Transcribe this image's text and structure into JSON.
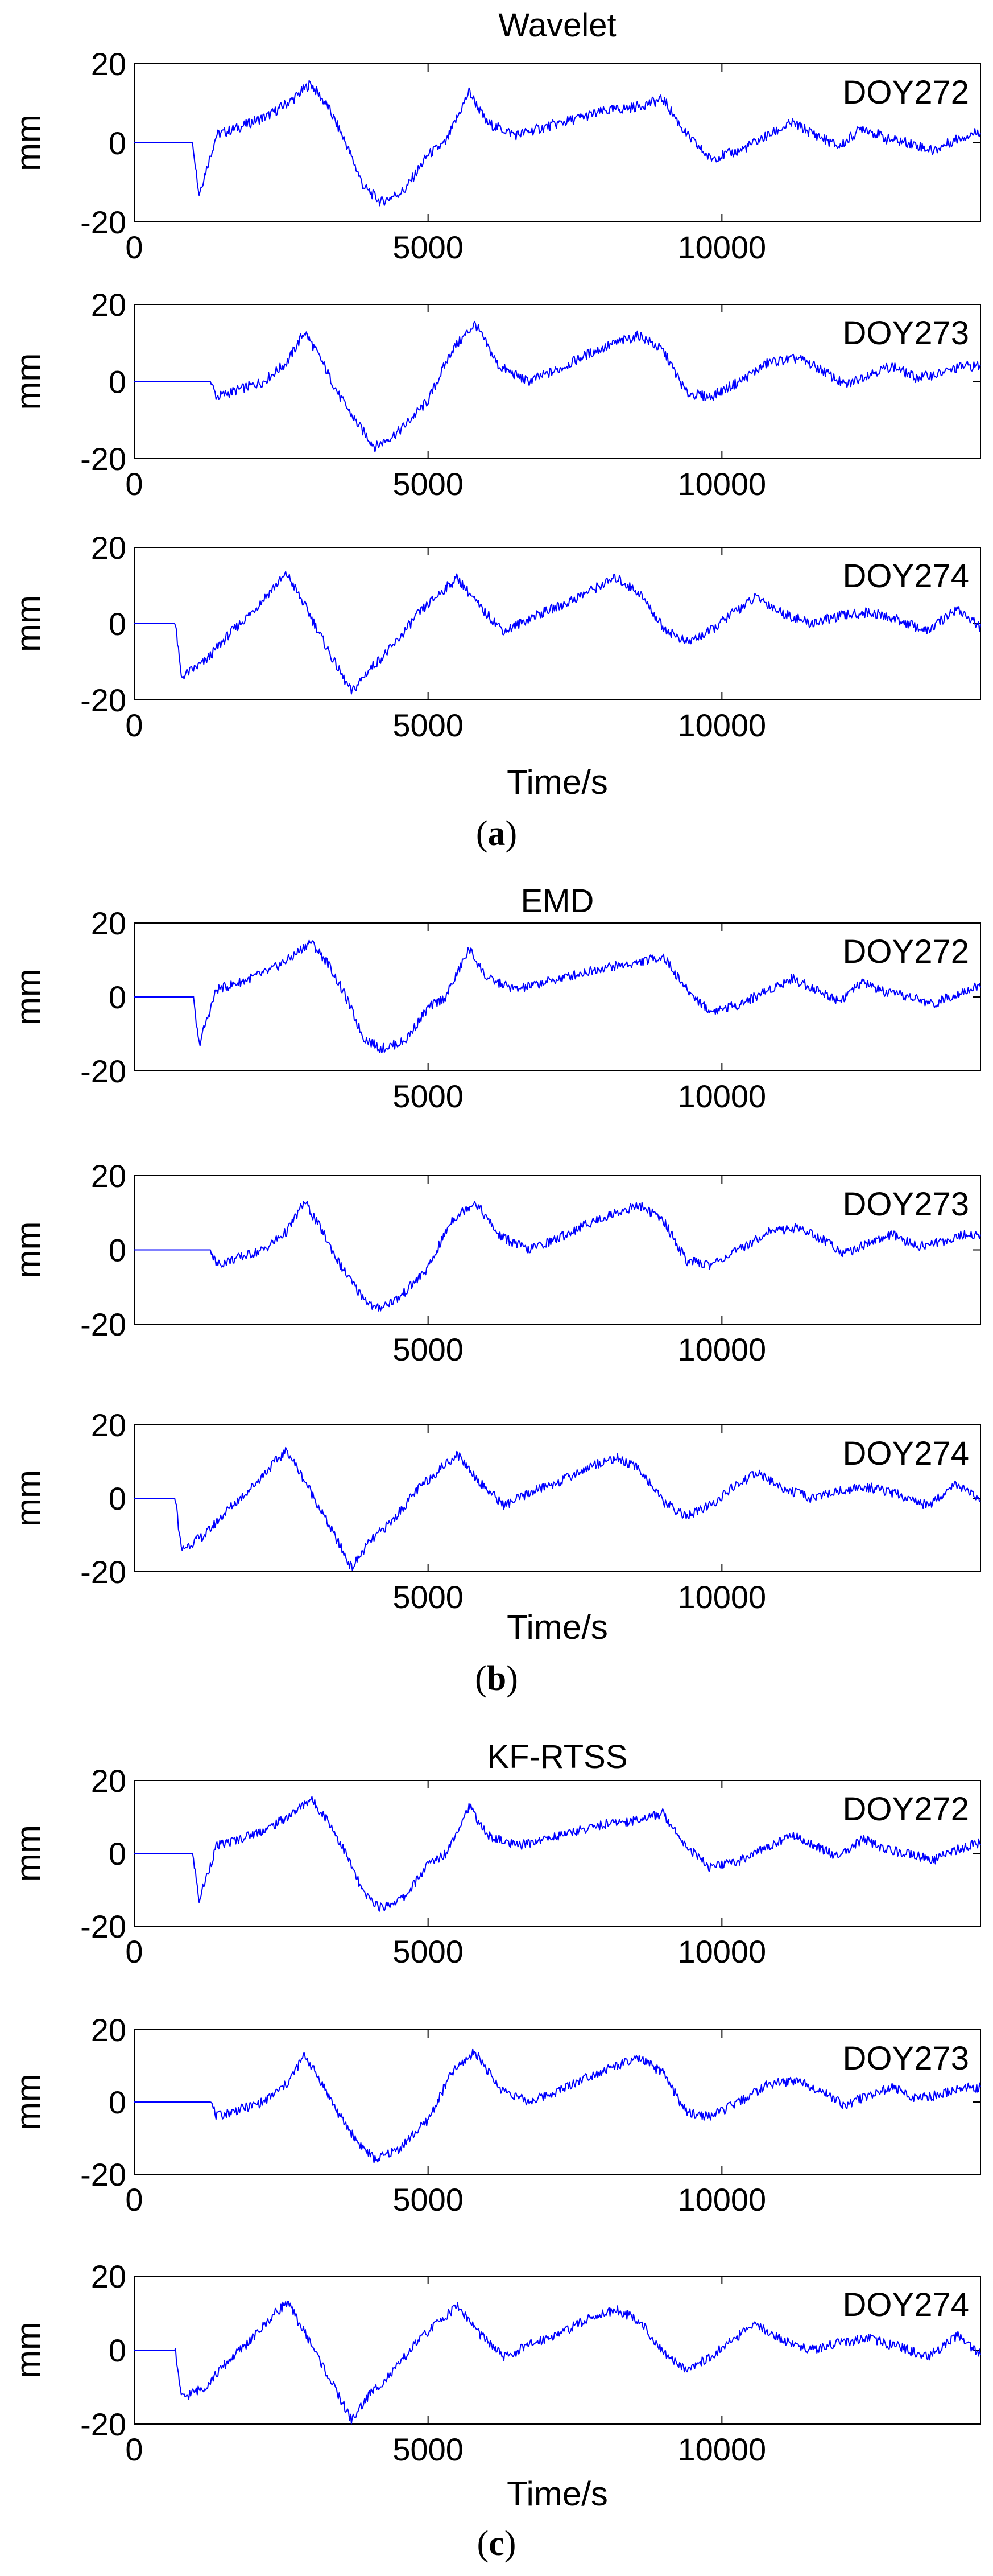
{
  "chart_data": [
    {
      "type": "line",
      "panel_label": "a",
      "title": "Wavelet",
      "xlabel": "Time/s",
      "ylabel": "mm",
      "xlim": [
        0,
        14400
      ],
      "ylim": [
        -20,
        20
      ],
      "xticks": [
        0,
        5000,
        10000
      ],
      "yticks": [
        20,
        0,
        -20
      ],
      "color": "#0000ff",
      "grid": false,
      "subplots": [
        {
          "name": "DOY272",
          "x": [
            0,
            1000,
            1100,
            1200,
            1400,
            1800,
            2300,
            2700,
            3000,
            3300,
            3600,
            3900,
            4200,
            4600,
            5000,
            5300,
            5700,
            6000,
            6500,
            7000,
            7500,
            8000,
            8500,
            9000,
            9400,
            9800,
            10300,
            10800,
            11200,
            11600,
            12000,
            12400,
            12800,
            13200,
            13600,
            14000,
            14400
          ],
          "y": [
            0,
            0,
            -13,
            -8,
            2,
            4,
            7,
            11,
            15,
            9,
            0,
            -11,
            -15,
            -12,
            -3,
            0,
            13,
            5,
            2,
            4,
            6,
            8,
            9,
            11,
            2,
            -4,
            -2,
            2,
            5,
            2,
            -1,
            4,
            1,
            0,
            -2,
            1,
            3
          ]
        },
        {
          "name": "DOY273",
          "x": [
            0,
            1300,
            1400,
            1800,
            2200,
            2600,
            2900,
            3200,
            3500,
            3800,
            4100,
            4500,
            5000,
            5400,
            5800,
            6200,
            6700,
            7200,
            7700,
            8200,
            8600,
            9000,
            9400,
            9800,
            10300,
            10800,
            11300,
            11700,
            12100,
            12500,
            12900,
            13300,
            13700,
            14100,
            14400
          ],
          "y": [
            0,
            0,
            -4,
            -2,
            0,
            5,
            13,
            5,
            -4,
            -11,
            -17,
            -13,
            -5,
            8,
            15,
            4,
            0,
            3,
            7,
            10,
            12,
            8,
            -3,
            -4,
            0,
            5,
            6,
            3,
            -1,
            2,
            4,
            1,
            2,
            4,
            4
          ]
        },
        {
          "name": "DOY274",
          "x": [
            0,
            700,
            800,
            1200,
            1600,
            2000,
            2400,
            2600,
            3000,
            3400,
            3700,
            4000,
            4400,
            4800,
            5200,
            5500,
            5900,
            6300,
            6800,
            7300,
            7800,
            8200,
            8600,
            9000,
            9400,
            9800,
            10200,
            10600,
            11000,
            11500,
            12000,
            12500,
            13000,
            13500,
            14000,
            14400
          ],
          "y": [
            0,
            0,
            -14,
            -10,
            -3,
            3,
            10,
            13,
            2,
            -10,
            -18,
            -12,
            -6,
            2,
            8,
            12,
            4,
            -2,
            2,
            5,
            9,
            12,
            8,
            -1,
            -5,
            -2,
            3,
            7,
            3,
            0,
            2,
            3,
            1,
            -2,
            4,
            -1
          ]
        }
      ]
    },
    {
      "type": "line",
      "panel_label": "b",
      "title": "EMD",
      "xlabel": "Time/s",
      "ylabel": "mm",
      "xlim": [
        0,
        14400
      ],
      "ylim": [
        -20,
        20
      ],
      "xticks": [
        5000,
        10000
      ],
      "yticks": [
        20,
        0,
        -20
      ],
      "color": "#0000ff",
      "grid": false,
      "subplots": [
        {
          "name": "DOY272",
          "x": [
            0,
            1000,
            1100,
            1200,
            1400,
            1800,
            2300,
            2700,
            3000,
            3300,
            3600,
            3900,
            4200,
            4600,
            5000,
            5300,
            5700,
            6000,
            6500,
            7000,
            7500,
            8000,
            8500,
            9000,
            9400,
            9800,
            10300,
            10800,
            11200,
            11600,
            12000,
            12400,
            12800,
            13200,
            13600,
            14000,
            14400
          ],
          "y": [
            0,
            0,
            -13,
            -8,
            2,
            4,
            7,
            11,
            15,
            9,
            0,
            -11,
            -14,
            -12,
            -3,
            0,
            13,
            5,
            2,
            4,
            6,
            8,
            9,
            11,
            2,
            -4,
            -2,
            2,
            5,
            2,
            -1,
            4,
            1,
            0,
            -2,
            1,
            3
          ]
        },
        {
          "name": "DOY273",
          "x": [
            0,
            1300,
            1400,
            1800,
            2200,
            2600,
            2900,
            3200,
            3500,
            3800,
            4100,
            4500,
            5000,
            5400,
            5800,
            6200,
            6700,
            7200,
            7700,
            8200,
            8600,
            9000,
            9400,
            9800,
            10300,
            10800,
            11300,
            11700,
            12100,
            12500,
            12900,
            13300,
            13700,
            14100,
            14400
          ],
          "y": [
            0,
            0,
            -4,
            -2,
            0,
            5,
            13,
            5,
            -4,
            -11,
            -16,
            -13,
            -5,
            8,
            13,
            4,
            0,
            3,
            7,
            10,
            12,
            8,
            -3,
            -4,
            0,
            5,
            6,
            3,
            -1,
            2,
            4,
            1,
            2,
            4,
            4
          ]
        },
        {
          "name": "DOY274",
          "x": [
            0,
            700,
            800,
            1200,
            1600,
            2000,
            2400,
            2600,
            3000,
            3400,
            3700,
            4000,
            4400,
            4800,
            5200,
            5500,
            5900,
            6300,
            6800,
            7300,
            7800,
            8200,
            8600,
            9000,
            9400,
            9800,
            10200,
            10600,
            11000,
            11500,
            12000,
            12500,
            13000,
            13500,
            14000,
            14400
          ],
          "y": [
            0,
            0,
            -14,
            -10,
            -3,
            3,
            10,
            13,
            2,
            -10,
            -19,
            -12,
            -6,
            2,
            8,
            12,
            4,
            -2,
            2,
            5,
            9,
            11,
            8,
            -1,
            -5,
            -2,
            3,
            7,
            3,
            0,
            2,
            3,
            1,
            -2,
            4,
            -1
          ]
        }
      ]
    },
    {
      "type": "line",
      "panel_label": "c",
      "title": "KF-RTSS",
      "xlabel": "Time/s",
      "ylabel": "mm",
      "xlim": [
        0,
        14400
      ],
      "ylim": [
        -20,
        20
      ],
      "xticks": [
        0,
        5000,
        10000
      ],
      "yticks": [
        20,
        0,
        -20
      ],
      "color": "#0000ff",
      "grid": false,
      "subplots": [
        {
          "name": "DOY272",
          "x": [
            0,
            1000,
            1100,
            1200,
            1400,
            1800,
            2300,
            2700,
            3000,
            3300,
            3600,
            3900,
            4200,
            4600,
            5000,
            5300,
            5700,
            6000,
            6500,
            7000,
            7500,
            8000,
            8500,
            9000,
            9400,
            9800,
            10300,
            10800,
            11200,
            11600,
            12000,
            12400,
            12800,
            13200,
            13600,
            14000,
            14400
          ],
          "y": [
            0,
            0,
            -13,
            -8,
            2,
            4,
            7,
            11,
            15,
            9,
            0,
            -11,
            -15,
            -12,
            -3,
            0,
            13,
            5,
            2,
            4,
            6,
            8,
            9,
            11,
            2,
            -4,
            -2,
            2,
            5,
            2,
            -1,
            4,
            1,
            0,
            -2,
            1,
            3
          ]
        },
        {
          "name": "DOY273",
          "x": [
            0,
            1300,
            1400,
            1800,
            2200,
            2600,
            2900,
            3200,
            3500,
            3800,
            4100,
            4500,
            5000,
            5400,
            5800,
            6200,
            6700,
            7200,
            7700,
            8200,
            8600,
            9000,
            9400,
            9800,
            10300,
            10800,
            11300,
            11700,
            12100,
            12500,
            12900,
            13300,
            13700,
            14100,
            14400
          ],
          "y": [
            0,
            0,
            -4,
            -2,
            0,
            5,
            13,
            5,
            -4,
            -11,
            -16,
            -13,
            -5,
            8,
            14,
            4,
            0,
            3,
            7,
            10,
            12,
            8,
            -3,
            -4,
            0,
            5,
            6,
            3,
            -1,
            2,
            4,
            1,
            2,
            4,
            4
          ]
        },
        {
          "name": "DOY274",
          "x": [
            0,
            700,
            800,
            1200,
            1600,
            2000,
            2400,
            2600,
            3000,
            3400,
            3700,
            4000,
            4400,
            4800,
            5200,
            5500,
            5900,
            6300,
            6800,
            7300,
            7800,
            8200,
            8600,
            9000,
            9400,
            9800,
            10200,
            10600,
            11000,
            11500,
            12000,
            12500,
            13000,
            13500,
            14000,
            14400
          ],
          "y": [
            0,
            0,
            -13,
            -10,
            -3,
            3,
            10,
            13,
            2,
            -10,
            -19,
            -12,
            -6,
            2,
            8,
            12,
            4,
            -2,
            2,
            5,
            9,
            11,
            8,
            -1,
            -5,
            -2,
            3,
            7,
            3,
            0,
            2,
            3,
            1,
            -2,
            4,
            -1
          ]
        }
      ]
    }
  ]
}
